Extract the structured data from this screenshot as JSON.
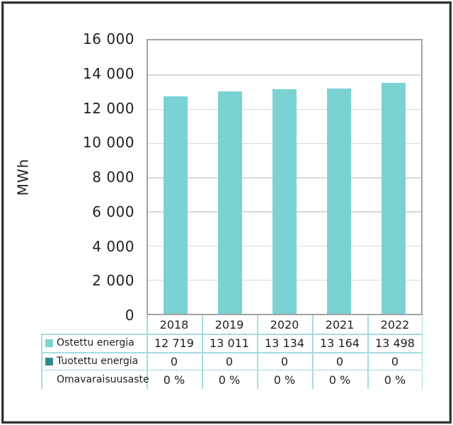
{
  "colors": {
    "bar_fill": "#7AD2D2",
    "produced_swatch": "#2F8C8C",
    "table_border": "#A5DBE2",
    "plot_border": "#A3A3A3",
    "gridline": "#D9D9D9",
    "text": "#1F1F1F",
    "frame_border": "#333333"
  },
  "chart_data": {
    "type": "bar",
    "title": "",
    "ylabel": "MWh",
    "xlabel": "",
    "categories": [
      "2018",
      "2019",
      "2020",
      "2021",
      "2022"
    ],
    "ylim": [
      0,
      16000
    ],
    "ytick_step": 2000,
    "yticks": [
      16000,
      14000,
      12000,
      10000,
      8000,
      6000,
      4000,
      2000,
      0
    ],
    "ytick_labels": [
      "16 000",
      "14 000",
      "12 000",
      "10 000",
      "8 000",
      "6 000",
      "4 000",
      "2 000",
      "0"
    ],
    "grid": true,
    "legend_position": "data-table-left-keys",
    "series": [
      {
        "name": "Ostettu energia",
        "values": [
          12719,
          13011,
          13134,
          13164,
          13498
        ],
        "labels": [
          "12 719",
          "13 011",
          "13 134",
          "13 164",
          "13 498"
        ],
        "color": "#7AD2D2",
        "plotted": true
      },
      {
        "name": "Tuotettu energia",
        "values": [
          0,
          0,
          0,
          0,
          0
        ],
        "labels": [
          "0",
          "0",
          "0",
          "0",
          "0"
        ],
        "color": "#2F8C8C",
        "plotted": true
      },
      {
        "name": "Omavaraisuusaste",
        "values": [
          0,
          0,
          0,
          0,
          0
        ],
        "labels": [
          "0 %",
          "0 %",
          "0 %",
          "0 %",
          "0 %"
        ],
        "color": null,
        "plotted": false
      }
    ]
  }
}
